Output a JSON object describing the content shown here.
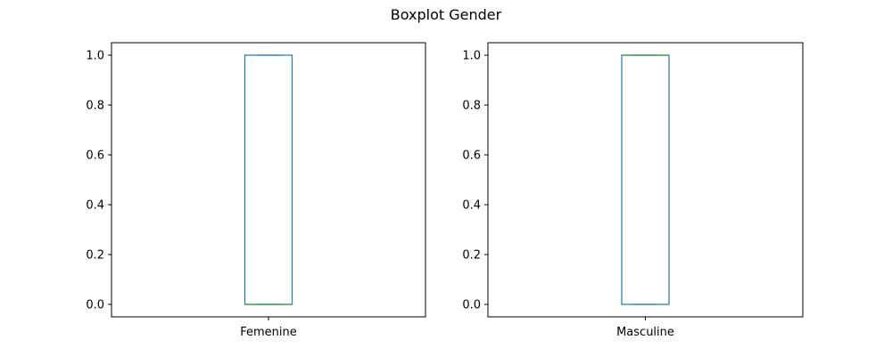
{
  "chart_data": {
    "title": "Boxplot Gender",
    "type": "boxplot",
    "colors": {
      "box": "#1f77b4",
      "median": "#2ca02c",
      "axes": "#000000"
    },
    "yticks": [
      0.0,
      0.2,
      0.4,
      0.6,
      0.8,
      1.0
    ],
    "ytick_labels": [
      "0.0",
      "0.2",
      "0.4",
      "0.6",
      "0.8",
      "1.0"
    ],
    "panels": [
      {
        "category": "Femenine",
        "ylim": [
          -0.05,
          1.05
        ],
        "stats": {
          "whisker_low": 0,
          "q1": 0,
          "median": 0,
          "q3": 1,
          "whisker_high": 1
        }
      },
      {
        "category": "Masculine",
        "ylim": [
          -0.05,
          1.05
        ],
        "stats": {
          "whisker_low": 0,
          "q1": 0,
          "median": 1,
          "q3": 1,
          "whisker_high": 1
        }
      }
    ]
  }
}
